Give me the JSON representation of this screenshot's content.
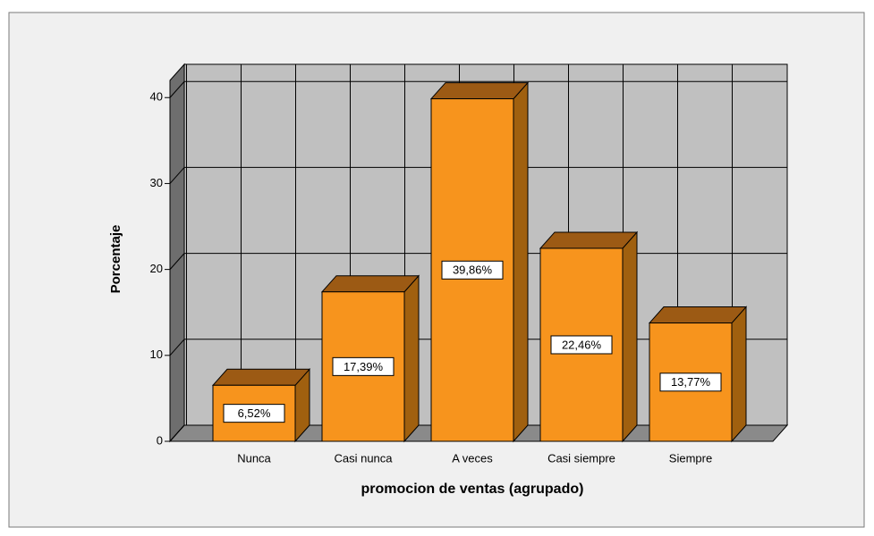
{
  "chart_data": {
    "type": "bar3d",
    "x_label": "promocion de ventas (agrupado)",
    "y_label": "Porcentaje",
    "categories": [
      "Nunca",
      "Casi nunca",
      "A veces",
      "Casi siempre",
      "Siempre"
    ],
    "values": [
      6.52,
      17.39,
      39.86,
      22.46,
      13.77
    ],
    "value_labels": [
      "6,52%",
      "17,39%",
      "39,86%",
      "22,46%",
      "13,77%"
    ],
    "color": "#f7941d",
    "ylim": [
      0,
      42
    ],
    "yticks": [
      0,
      10,
      20,
      30,
      40
    ],
    "grid": true
  }
}
